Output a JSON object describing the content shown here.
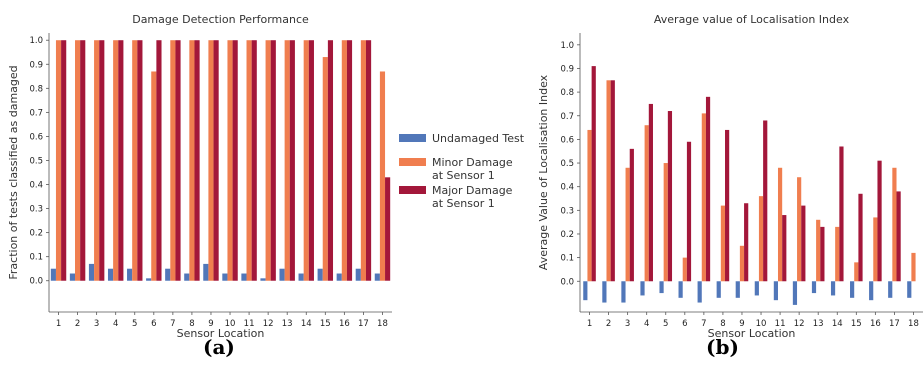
{
  "colors": {
    "undamaged": "#5177b9",
    "minor": "#f07e4f",
    "major": "#a3173a"
  },
  "captions": {
    "a": "(a)",
    "b": "(b)"
  },
  "legend": [
    {
      "label_lines": [
        "Undamaged Test"
      ],
      "color_key": "undamaged"
    },
    {
      "label_lines": [
        "Minor Damage",
        "at Sensor 1"
      ],
      "color_key": "minor"
    },
    {
      "label_lines": [
        "Major Damage",
        "at Sensor 1"
      ],
      "color_key": "major"
    }
  ],
  "chart_data": [
    {
      "type": "bar",
      "title": "Damage Detection Performance",
      "xlabel": "Sensor Location",
      "ylabel": "Fraction of tests classified as damaged",
      "categories": [
        "1",
        "2",
        "3",
        "4",
        "5",
        "6",
        "7",
        "8",
        "9",
        "10",
        "11",
        "12",
        "13",
        "14",
        "15",
        "16",
        "17",
        "18"
      ],
      "ylim": [
        -0.13,
        1.03
      ],
      "yticks": [
        "0.0",
        "0.1",
        "0.2",
        "0.3",
        "0.4",
        "0.5",
        "0.6",
        "0.7",
        "0.8",
        "0.9",
        "1.0"
      ],
      "grid": false,
      "legend_position": "right",
      "series": [
        {
          "key": "undamaged",
          "values": [
            0.05,
            0.03,
            0.07,
            0.05,
            0.05,
            0.01,
            0.05,
            0.03,
            0.07,
            0.03,
            0.03,
            0.01,
            0.05,
            0.03,
            0.05,
            0.03,
            0.05,
            0.03
          ]
        },
        {
          "key": "minor",
          "values": [
            1.0,
            1.0,
            1.0,
            1.0,
            1.0,
            0.87,
            1.0,
            1.0,
            1.0,
            1.0,
            1.0,
            1.0,
            1.0,
            1.0,
            0.93,
            1.0,
            1.0,
            0.87
          ]
        },
        {
          "key": "major",
          "values": [
            1.0,
            1.0,
            1.0,
            1.0,
            1.0,
            1.0,
            1.0,
            1.0,
            1.0,
            1.0,
            1.0,
            1.0,
            1.0,
            1.0,
            1.0,
            1.0,
            1.0,
            0.43
          ]
        }
      ]
    },
    {
      "type": "bar",
      "title": "Average value of Localisation Index",
      "xlabel": "Sensor Location",
      "ylabel": "Average Value of Localisation Index",
      "categories": [
        "1",
        "2",
        "3",
        "4",
        "5",
        "6",
        "7",
        "8",
        "9",
        "10",
        "11",
        "12",
        "13",
        "14",
        "15",
        "16",
        "17",
        "18"
      ],
      "ylim": [
        -0.13,
        1.05
      ],
      "yticks": [
        "0.0",
        "0.1",
        "0.2",
        "0.3",
        "0.4",
        "0.5",
        "0.6",
        "0.7",
        "0.8",
        "0.9",
        "1.0"
      ],
      "grid": false,
      "series": [
        {
          "key": "undamaged",
          "values": [
            -0.08,
            -0.09,
            -0.09,
            -0.06,
            -0.05,
            -0.07,
            -0.09,
            -0.07,
            -0.07,
            -0.06,
            -0.08,
            -0.1,
            -0.05,
            -0.06,
            -0.07,
            -0.08,
            -0.07,
            -0.07
          ]
        },
        {
          "key": "minor",
          "values": [
            0.64,
            0.85,
            0.48,
            0.66,
            0.5,
            0.1,
            0.71,
            0.32,
            0.15,
            0.36,
            0.48,
            0.44,
            0.26,
            0.23,
            0.08,
            0.27,
            0.48,
            0.12
          ]
        },
        {
          "key": "major",
          "values": [
            0.91,
            0.85,
            0.56,
            0.75,
            0.72,
            0.59,
            0.78,
            0.64,
            0.33,
            0.68,
            0.28,
            0.32,
            0.23,
            0.57,
            0.37,
            0.51,
            0.38,
            0.0
          ]
        }
      ]
    }
  ]
}
